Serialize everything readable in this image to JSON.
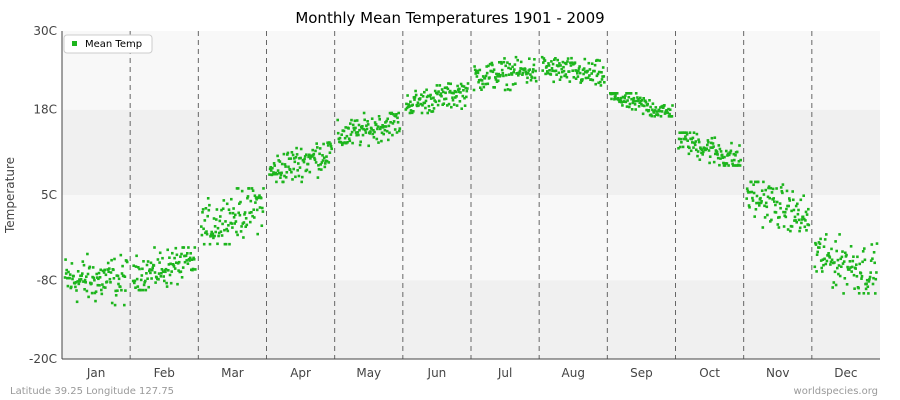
{
  "chart_data": {
    "type": "scatter",
    "title": "Monthly Mean Temperatures 1901 - 2009",
    "ylabel": "Temperature",
    "xlabel": "",
    "y_ticks": [
      "30C",
      "18C",
      "5C",
      "-8C",
      "-20C"
    ],
    "y_tick_values": [
      30,
      18,
      5,
      -8,
      -20
    ],
    "ylim": [
      -20,
      30
    ],
    "categories": [
      "Jan",
      "Feb",
      "Mar",
      "Apr",
      "May",
      "Jun",
      "Jul",
      "Aug",
      "Sep",
      "Oct",
      "Nov",
      "Dec"
    ],
    "grid": "alternating horizontal bands, dashed vertical month separators",
    "legend_position": "top-left",
    "series": [
      {
        "name": "Mean Temp",
        "color": "#1db51d",
        "points_per_month": 109,
        "monthly_ranges": [
          {
            "month": "Jan",
            "min": -12,
            "max": -4
          },
          {
            "month": "Feb",
            "min": -9.5,
            "max": -3
          },
          {
            "month": "Mar",
            "min": -2.5,
            "max": 6
          },
          {
            "month": "Apr",
            "min": 7,
            "max": 13
          },
          {
            "month": "May",
            "min": 12.5,
            "max": 17.5
          },
          {
            "month": "Jun",
            "min": 17.5,
            "max": 22
          },
          {
            "month": "Jul",
            "min": 21,
            "max": 26
          },
          {
            "month": "Aug",
            "min": 21.5,
            "max": 26
          },
          {
            "month": "Sep",
            "min": 17,
            "max": 20.5
          },
          {
            "month": "Oct",
            "min": 9.5,
            "max": 14.5
          },
          {
            "month": "Nov",
            "min": -0.5,
            "max": 7
          },
          {
            "month": "Dec",
            "min": -10,
            "max": -1
          }
        ]
      }
    ]
  },
  "footer": {
    "left": "Latitude 39.25 Longitude 127.75",
    "right": "worldspecies.org"
  }
}
